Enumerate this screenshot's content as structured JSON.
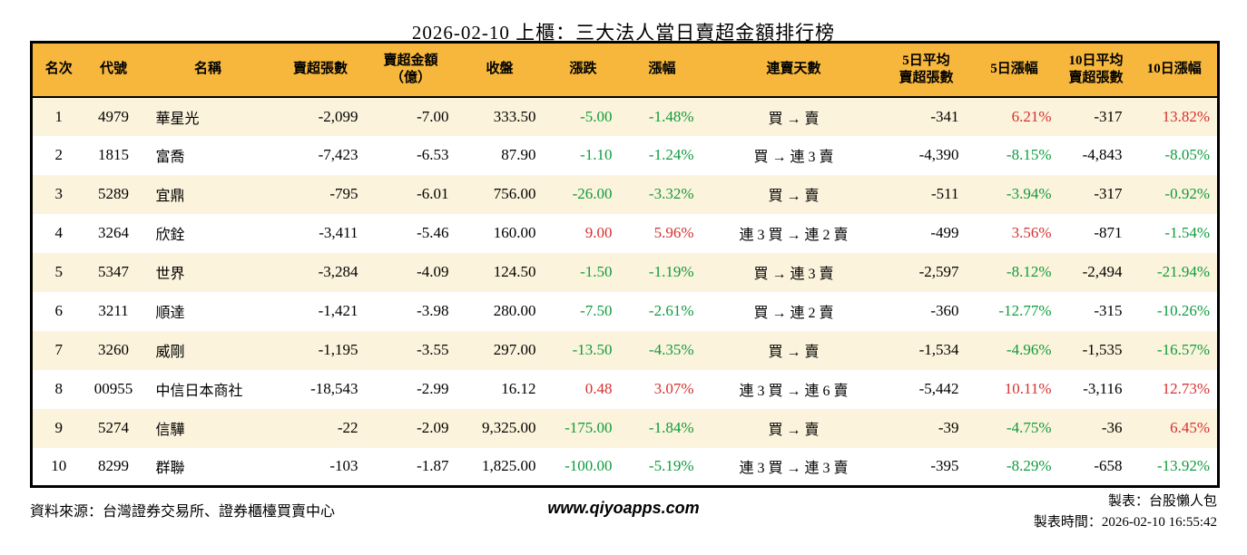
{
  "colors": {
    "headerBg": "#f6b73c",
    "stripeBg": "#fcf3dc",
    "green": "#0e9c3c",
    "red": "#d63030",
    "border": "#000000"
  },
  "chart_data": {
    "type": "table",
    "title": "2026-02-10 上櫃：三大法人當日賣超金額排行榜",
    "columns": [
      {
        "key": "rank",
        "label": "名次"
      },
      {
        "key": "code",
        "label": "代號"
      },
      {
        "key": "name",
        "label": "名稱"
      },
      {
        "key": "sell_shares",
        "label": "賣超張數"
      },
      {
        "key": "sell_amount",
        "label": "賣超金額\n（億）"
      },
      {
        "key": "close",
        "label": "收盤"
      },
      {
        "key": "change",
        "label": "漲跌"
      },
      {
        "key": "change_pct",
        "label": "漲幅"
      },
      {
        "key": "streak",
        "label": "連賣天數"
      },
      {
        "key": "avg5",
        "label": "5日平均\n賣超張數"
      },
      {
        "key": "pct5",
        "label": "5日漲幅"
      },
      {
        "key": "avg10",
        "label": "10日平均\n賣超張數"
      },
      {
        "key": "pct10",
        "label": "10日漲幅"
      }
    ],
    "rows": [
      {
        "rank": "1",
        "code": "4979",
        "name": "華星光",
        "sell_shares": "-2,099",
        "sell_amount": "-7.00",
        "close": "333.50",
        "change": "-5.00",
        "change_color": "green",
        "change_pct": "-1.48%",
        "change_pct_color": "green",
        "streak": "買 → 賣",
        "avg5": "-341",
        "pct5": "6.21%",
        "pct5_color": "red",
        "avg10": "-317",
        "pct10": "13.82%",
        "pct10_color": "red"
      },
      {
        "rank": "2",
        "code": "1815",
        "name": "富喬",
        "sell_shares": "-7,423",
        "sell_amount": "-6.53",
        "close": "87.90",
        "change": "-1.10",
        "change_color": "green",
        "change_pct": "-1.24%",
        "change_pct_color": "green",
        "streak": "買 → 連 3 賣",
        "avg5": "-4,390",
        "pct5": "-8.15%",
        "pct5_color": "green",
        "avg10": "-4,843",
        "pct10": "-8.05%",
        "pct10_color": "green"
      },
      {
        "rank": "3",
        "code": "5289",
        "name": "宜鼎",
        "sell_shares": "-795",
        "sell_amount": "-6.01",
        "close": "756.00",
        "change": "-26.00",
        "change_color": "green",
        "change_pct": "-3.32%",
        "change_pct_color": "green",
        "streak": "買 → 賣",
        "avg5": "-511",
        "pct5": "-3.94%",
        "pct5_color": "green",
        "avg10": "-317",
        "pct10": "-0.92%",
        "pct10_color": "green"
      },
      {
        "rank": "4",
        "code": "3264",
        "name": "欣銓",
        "sell_shares": "-3,411",
        "sell_amount": "-5.46",
        "close": "160.00",
        "change": "9.00",
        "change_color": "red",
        "change_pct": "5.96%",
        "change_pct_color": "red",
        "streak": "連 3 買 → 連 2 賣",
        "avg5": "-499",
        "pct5": "3.56%",
        "pct5_color": "red",
        "avg10": "-871",
        "pct10": "-1.54%",
        "pct10_color": "green"
      },
      {
        "rank": "5",
        "code": "5347",
        "name": "世界",
        "sell_shares": "-3,284",
        "sell_amount": "-4.09",
        "close": "124.50",
        "change": "-1.50",
        "change_color": "green",
        "change_pct": "-1.19%",
        "change_pct_color": "green",
        "streak": "買 → 連 3 賣",
        "avg5": "-2,597",
        "pct5": "-8.12%",
        "pct5_color": "green",
        "avg10": "-2,494",
        "pct10": "-21.94%",
        "pct10_color": "green"
      },
      {
        "rank": "6",
        "code": "3211",
        "name": "順達",
        "sell_shares": "-1,421",
        "sell_amount": "-3.98",
        "close": "280.00",
        "change": "-7.50",
        "change_color": "green",
        "change_pct": "-2.61%",
        "change_pct_color": "green",
        "streak": "買 → 連 2 賣",
        "avg5": "-360",
        "pct5": "-12.77%",
        "pct5_color": "green",
        "avg10": "-315",
        "pct10": "-10.26%",
        "pct10_color": "green"
      },
      {
        "rank": "7",
        "code": "3260",
        "name": "威剛",
        "sell_shares": "-1,195",
        "sell_amount": "-3.55",
        "close": "297.00",
        "change": "-13.50",
        "change_color": "green",
        "change_pct": "-4.35%",
        "change_pct_color": "green",
        "streak": "買 → 賣",
        "avg5": "-1,534",
        "pct5": "-4.96%",
        "pct5_color": "green",
        "avg10": "-1,535",
        "pct10": "-16.57%",
        "pct10_color": "green"
      },
      {
        "rank": "8",
        "code": "00955",
        "name": "中信日本商社",
        "sell_shares": "-18,543",
        "sell_amount": "-2.99",
        "close": "16.12",
        "change": "0.48",
        "change_color": "red",
        "change_pct": "3.07%",
        "change_pct_color": "red",
        "streak": "連 3 買 → 連 6 賣",
        "avg5": "-5,442",
        "pct5": "10.11%",
        "pct5_color": "red",
        "avg10": "-3,116",
        "pct10": "12.73%",
        "pct10_color": "red"
      },
      {
        "rank": "9",
        "code": "5274",
        "name": "信驊",
        "sell_shares": "-22",
        "sell_amount": "-2.09",
        "close": "9,325.00",
        "change": "-175.00",
        "change_color": "green",
        "change_pct": "-1.84%",
        "change_pct_color": "green",
        "streak": "買 → 賣",
        "avg5": "-39",
        "pct5": "-4.75%",
        "pct5_color": "green",
        "avg10": "-36",
        "pct10": "6.45%",
        "pct10_color": "red"
      },
      {
        "rank": "10",
        "code": "8299",
        "name": "群聯",
        "sell_shares": "-103",
        "sell_amount": "-1.87",
        "close": "1,825.00",
        "change": "-100.00",
        "change_color": "green",
        "change_pct": "-5.19%",
        "change_pct_color": "green",
        "streak": "連 3 買 → 連 3 賣",
        "avg5": "-395",
        "pct5": "-8.29%",
        "pct5_color": "green",
        "avg10": "-658",
        "pct10": "-13.92%",
        "pct10_color": "green"
      }
    ]
  },
  "footer": {
    "source": "資料來源：台灣證券交易所、證券櫃檯買賣中心",
    "website": "www.qiyoapps.com",
    "author": "製表：台股懶人包",
    "generated": "製表時間：2026-02-10 16:55:42"
  }
}
